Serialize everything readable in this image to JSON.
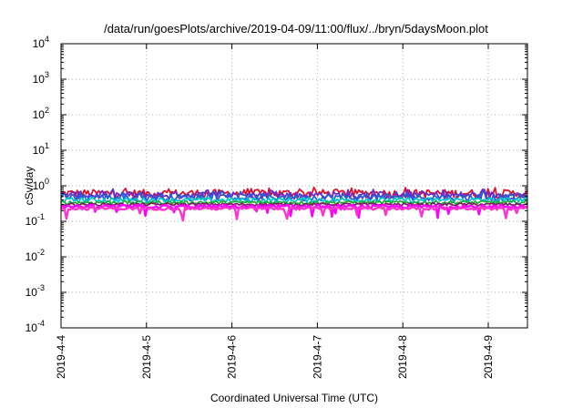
{
  "chart_data": {
    "type": "line",
    "title": "/data/run/goesPlots/archive/2019-04-09/11:00/flux/../bryn/5daysMoon.plot",
    "xlabel": "Coordinated Universal Time (UTC)",
    "ylabel": "cSv/day",
    "yscale": "log",
    "ylim": [
      0.0001,
      10000
    ],
    "xlim": [
      "2019-04-04",
      "2019-04-09 11:00"
    ],
    "grid": true,
    "x_ticks": [
      "2019-4-4",
      "2019-4-5",
      "2019-4-6",
      "2019-4-7",
      "2019-4-8",
      "2019-4-9"
    ],
    "y_ticks": [
      {
        "base": "10",
        "exp": "-4"
      },
      {
        "base": "10",
        "exp": "-3"
      },
      {
        "base": "10",
        "exp": "-2"
      },
      {
        "base": "10",
        "exp": "-1"
      },
      {
        "base": "10",
        "exp": "0"
      },
      {
        "base": "10",
        "exp": "1"
      },
      {
        "base": "10",
        "exp": "2"
      },
      {
        "base": "10",
        "exp": "3"
      },
      {
        "base": "10",
        "exp": "4"
      }
    ],
    "series": [
      {
        "color": "#e0102a",
        "level": 0.62,
        "variation": 0.12
      },
      {
        "color": "#6a2cc8",
        "level": 0.55,
        "variation": 0.11
      },
      {
        "color": "#2a5bd7",
        "level": 0.48,
        "variation": 0.1
      },
      {
        "color": "#00c8c8",
        "level": 0.4,
        "variation": 0.07
      },
      {
        "color": "#1fae3a",
        "level": 0.34,
        "variation": 0.05
      },
      {
        "color": "#7a1f5f",
        "level": 0.3,
        "variation": 0.04
      },
      {
        "color": "#ff00ff",
        "level": 0.26,
        "variation": 0.05
      },
      {
        "color": "#ff33cc",
        "level": 0.23,
        "variation": 0.04
      }
    ]
  }
}
